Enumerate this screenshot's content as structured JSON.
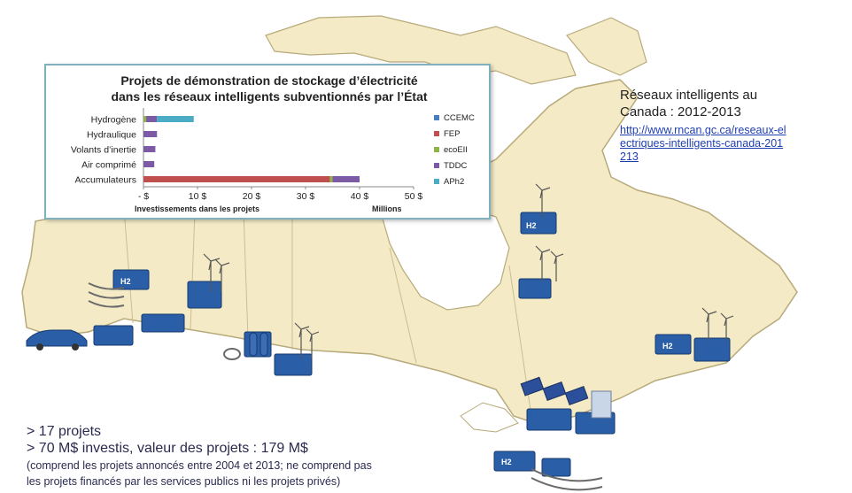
{
  "chart_data": {
    "type": "bar",
    "orientation": "horizontal",
    "stacked": true,
    "title_line1": "Projets de démonstration de stockage d’électricité",
    "title_line2": "dans les réseaux intelligents subventionnés par l’État",
    "xlabel": "Investissements dans les projets",
    "x_unit_label": "Millions",
    "xlim": [
      0,
      50
    ],
    "x_ticks": [
      {
        "value": 0,
        "label": "- $"
      },
      {
        "value": 10,
        "label": "10 $"
      },
      {
        "value": 20,
        "label": "20 $"
      },
      {
        "value": 30,
        "label": "30 $"
      },
      {
        "value": 40,
        "label": "40 $"
      },
      {
        "value": 50,
        "label": "50 $"
      }
    ],
    "categories": [
      "Hydrogène",
      "Hydraulique",
      "Volants d’inertie",
      "Air comprimé",
      "Accumulateurs"
    ],
    "series": [
      {
        "name": "CCEMC",
        "color": "#4a7fbf",
        "values": [
          0,
          0,
          0,
          0,
          0
        ]
      },
      {
        "name": "FEP",
        "color": "#c0504d",
        "values": [
          0,
          0,
          0,
          0,
          34.5
        ]
      },
      {
        "name": "ecoEII",
        "color": "#8fb54a",
        "values": [
          0.5,
          0,
          0,
          0,
          0.5
        ]
      },
      {
        "name": "TDDC",
        "color": "#7d5aa6",
        "values": [
          2.0,
          2.5,
          2.2,
          2.0,
          5.0
        ]
      },
      {
        "name": "APh2",
        "color": "#4aacc5",
        "values": [
          6.8,
          0,
          0,
          0,
          0
        ]
      }
    ],
    "legend_position": "right",
    "grid": false
  },
  "right_info": {
    "title_line1": "Réseaux intelligents au",
    "title_line2": "Canada : 2012-2013",
    "link": "http://www.rncan.gc.ca/reseaux-electriques-intelligents-canada-201213"
  },
  "bottom_info": {
    "line1": "> 17 projets",
    "line2": "> 70 M$ investis, valeur des projets : 179 M$",
    "note1": "(comprend les projets annoncés entre 2004 et 2013; ne comprend pas",
    "note2": "les projets financés par les services publics ni les projets privés)"
  },
  "map_icons": {
    "hydrogen_label": "H2"
  }
}
